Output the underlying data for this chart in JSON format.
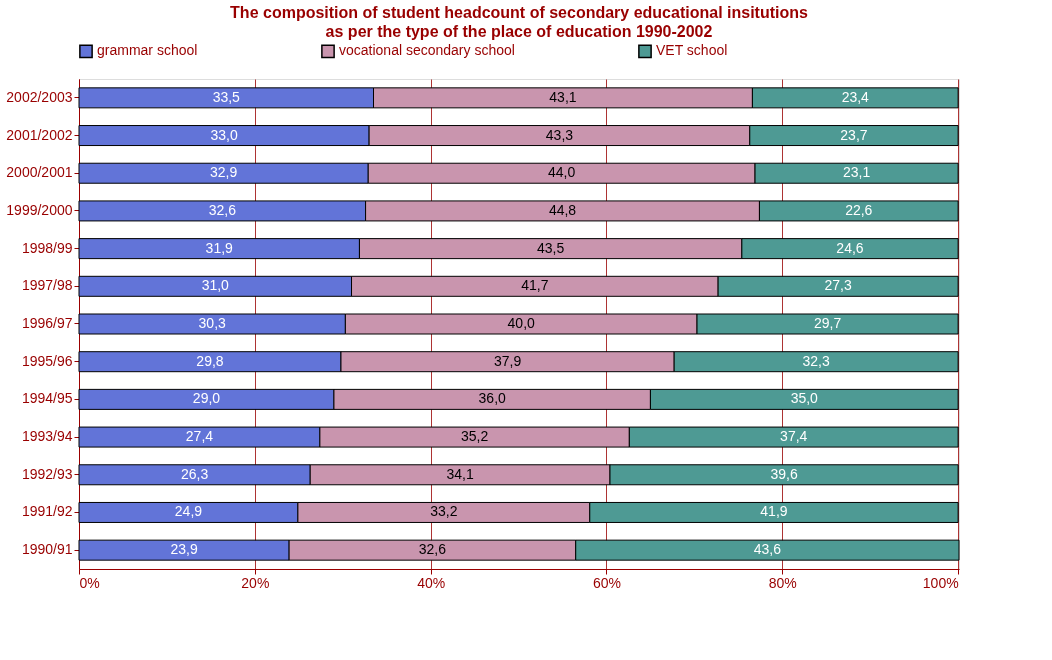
{
  "chart_data": {
    "type": "bar",
    "orientation": "horizontal",
    "stacked": true,
    "title": "The composition of student headcount of secondary educational insitutions",
    "subtitle": "as per the type of the place of education 1990-2002",
    "categories": [
      "2002/2003",
      "2001/2002",
      "2000/2001",
      "1999/2000",
      "1998/99",
      "1997/98",
      "1996/97",
      "1995/96",
      "1994/95",
      "1993/94",
      "1992/93",
      "1991/92",
      "1990/91"
    ],
    "series": [
      {
        "name": "grammar school",
        "color": "#6274d8",
        "values": [
          33.5,
          33.0,
          32.9,
          32.6,
          31.9,
          31.0,
          30.3,
          29.8,
          29.0,
          27.4,
          26.3,
          24.9,
          23.9
        ],
        "value_labels": [
          "33,5",
          "33,0",
          "32,9",
          "32,6",
          "31,9",
          "31,0",
          "30,3",
          "29,8",
          "29,0",
          "27,4",
          "26,3",
          "24,9",
          "23,9"
        ]
      },
      {
        "name": "vocational secondary school",
        "color": "#c995ae",
        "values": [
          43.1,
          43.3,
          44.0,
          44.8,
          43.5,
          41.7,
          40.0,
          37.9,
          36.0,
          35.2,
          34.1,
          33.2,
          32.6
        ],
        "value_labels": [
          "43,1",
          "43,3",
          "44,0",
          "44,8",
          "43,5",
          "41,7",
          "40,0",
          "37,9",
          "36,0",
          "35,2",
          "34,1",
          "33,2",
          "32,6"
        ]
      },
      {
        "name": "VET school",
        "color": "#4e9a94",
        "values": [
          23.4,
          23.7,
          23.1,
          22.6,
          24.6,
          27.3,
          29.7,
          32.3,
          35.0,
          37.4,
          39.6,
          41.9,
          43.6
        ],
        "value_labels": [
          "23,4",
          "23,7",
          "23,1",
          "22,6",
          "24,6",
          "27,3",
          "29,7",
          "32,3",
          "35,0",
          "37,4",
          "39,6",
          "41,9",
          "43,6"
        ]
      }
    ],
    "xlim": [
      0,
      100.1
    ],
    "xticks": [
      {
        "value": 0,
        "label": "0%"
      },
      {
        "value": 20,
        "label": "20%"
      },
      {
        "value": 40,
        "label": "40%"
      },
      {
        "value": 60,
        "label": "60%"
      },
      {
        "value": 80,
        "label": "80%"
      },
      {
        "value": 100,
        "label": "100%"
      }
    ],
    "grid": "x",
    "legend": "top"
  }
}
